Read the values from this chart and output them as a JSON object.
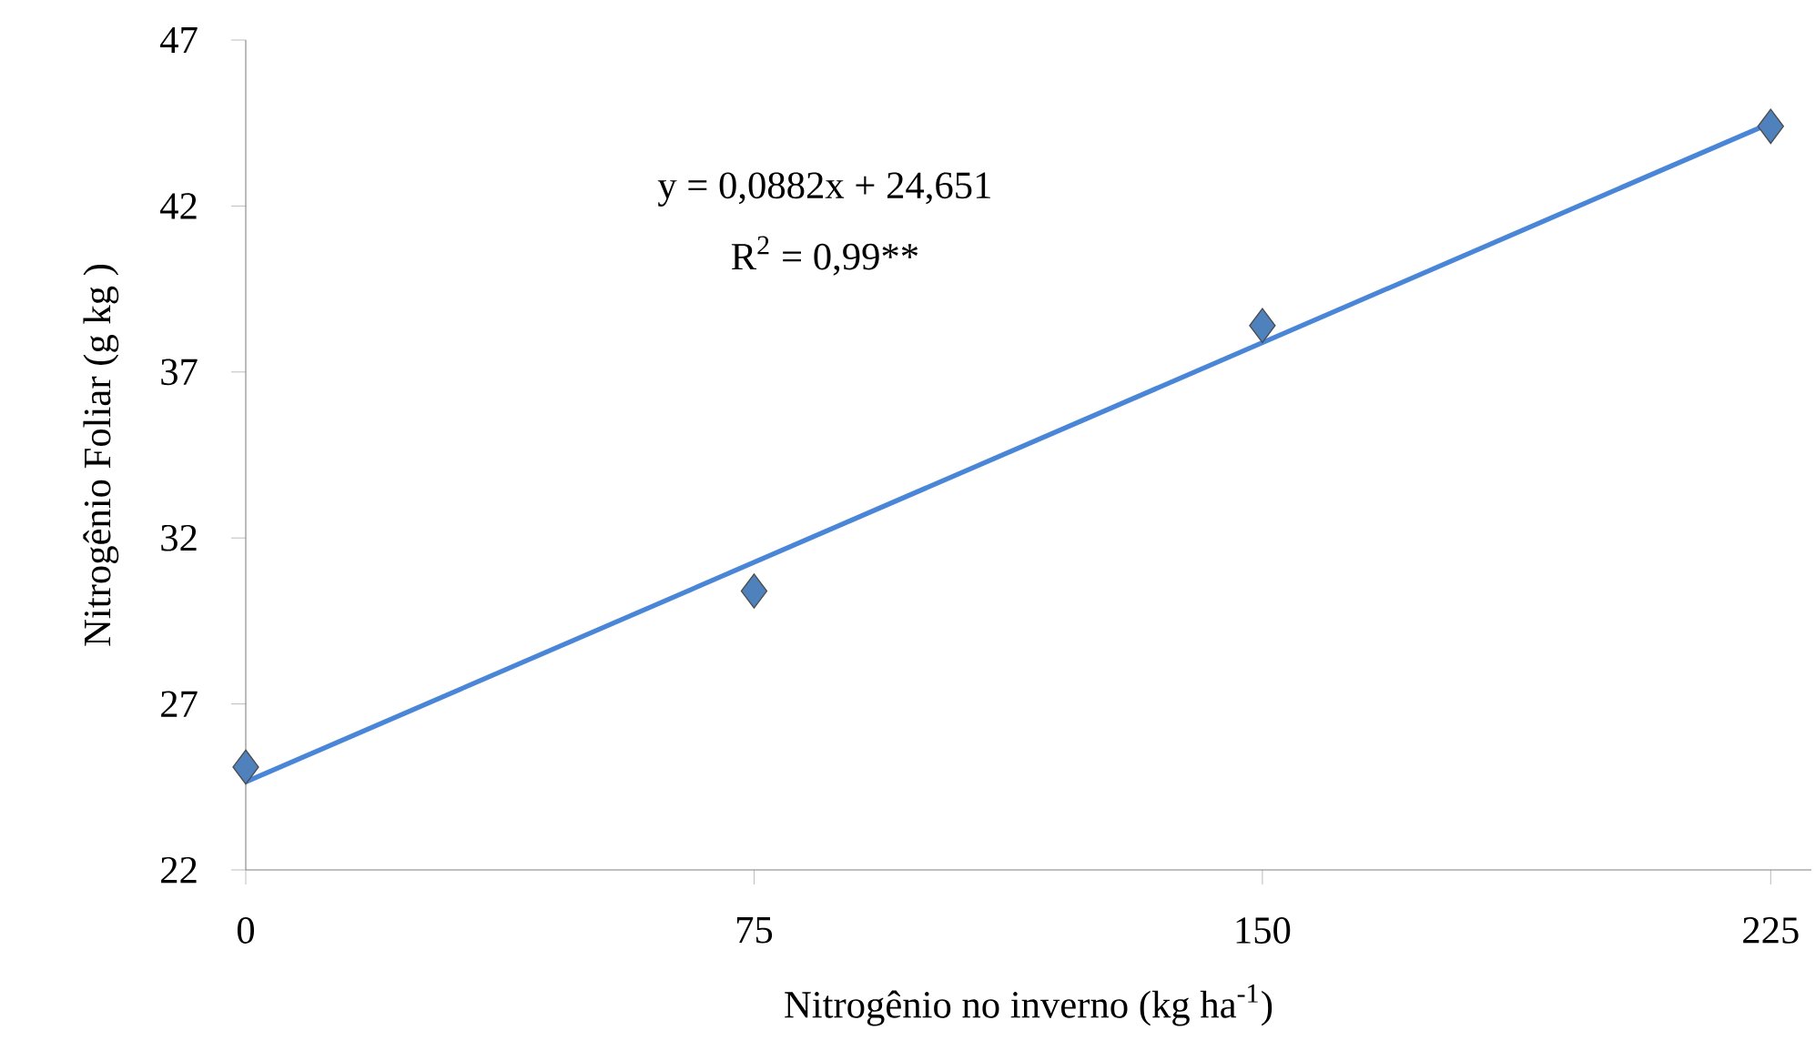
{
  "chart_data": {
    "type": "scatter",
    "xlabel": "Nitrogênio no inverno (kg ha$^{-1}$)",
    "ylabel": "Nitrogênio Foliar (g kg )",
    "annotations": [
      "y = 0,0882x + 24,651",
      "R$^{2}$ = 0,99**"
    ],
    "series": [
      {
        "color": "#4f81bd",
        "marker": "diamond",
        "x": [
          0,
          75,
          150,
          225
        ],
        "values": [
          25.1,
          30.4,
          38.4,
          44.4
        ]
      },
      {
        "type": "line",
        "color": "#4a86d8",
        "marker": "none",
        "line_style": "solid",
        "x": [
          0,
          225
        ],
        "values": [
          24.65,
          44.5
        ]
      }
    ],
    "xlim": [
      0,
      231
    ],
    "ylim": [
      22,
      47
    ],
    "xticks": [
      0,
      75,
      150,
      225
    ],
    "yticks": [
      22,
      27,
      32,
      37,
      42,
      47
    ]
  }
}
